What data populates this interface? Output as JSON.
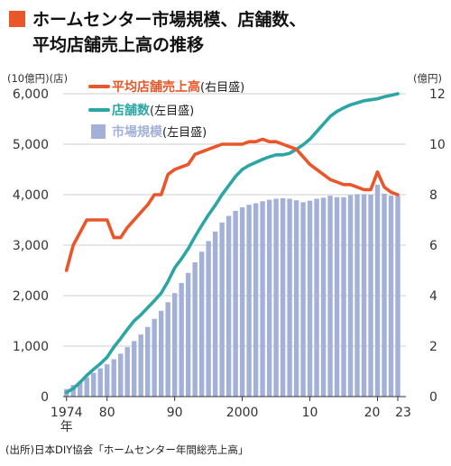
{
  "title": {
    "line1": "ホームセンター市場規模、店舗数、",
    "line2": "平均店舗売上高の推移",
    "accent_color": "#e8562a"
  },
  "source": "(出所)日本DIY協会「ホームセンター年間総売上高」",
  "chart_data": {
    "type": "bar+line",
    "left_axis_labels": [
      "(10億円)",
      "(店)"
    ],
    "right_axis_label": "(億円)",
    "left_ticks": [
      "0",
      "1,000",
      "2,000",
      "3,000",
      "4,000",
      "5,000",
      "6,000"
    ],
    "right_ticks": [
      "0",
      "2",
      "4",
      "6",
      "8",
      "10",
      "12"
    ],
    "ylim_left": [
      0,
      6000
    ],
    "ylim_right": [
      0,
      12
    ],
    "x_ticks": [
      "1974",
      "80",
      "90",
      "2000",
      "10",
      "20",
      "23"
    ],
    "x_tick_years": [
      1974,
      1980,
      1990,
      2000,
      2010,
      2020,
      2023
    ],
    "x_sublabel": "年",
    "legend": [
      {
        "name": "平均店舗売上高",
        "suffix": "(右目盛)",
        "color": "#e8562a",
        "kind": "line"
      },
      {
        "name": "店舗数",
        "suffix": "(左目盛)",
        "color": "#2ba6a4",
        "kind": "line"
      },
      {
        "name": "市場規模",
        "suffix": "(左目盛)",
        "color": "#a3b1d9",
        "kind": "bar"
      }
    ],
    "years": [
      1974,
      1975,
      1976,
      1977,
      1978,
      1979,
      1980,
      1981,
      1982,
      1983,
      1984,
      1985,
      1986,
      1987,
      1988,
      1989,
      1990,
      1991,
      1992,
      1993,
      1994,
      1995,
      1996,
      1997,
      1998,
      1999,
      2000,
      2001,
      2002,
      2003,
      2004,
      2005,
      2006,
      2007,
      2008,
      2009,
      2010,
      2011,
      2012,
      2013,
      2014,
      2015,
      2016,
      2017,
      2018,
      2019,
      2020,
      2021,
      2022,
      2023
    ],
    "market_size": [
      150,
      230,
      300,
      380,
      470,
      560,
      640,
      740,
      850,
      980,
      1100,
      1230,
      1380,
      1540,
      1700,
      1870,
      2050,
      2250,
      2450,
      2660,
      2870,
      3080,
      3270,
      3450,
      3580,
      3680,
      3750,
      3800,
      3830,
      3870,
      3900,
      3920,
      3930,
      3920,
      3890,
      3850,
      3880,
      3920,
      3940,
      3980,
      3950,
      3950,
      3990,
      4010,
      4010,
      4000,
      4200,
      4020,
      3980,
      3980
    ],
    "store_count": [
      80,
      160,
      280,
      420,
      540,
      650,
      780,
      980,
      1150,
      1330,
      1500,
      1620,
      1760,
      1900,
      2050,
      2280,
      2550,
      2730,
      2930,
      3170,
      3390,
      3600,
      3790,
      4000,
      4180,
      4360,
      4500,
      4580,
      4640,
      4700,
      4750,
      4790,
      4790,
      4820,
      4900,
      4990,
      5100,
      5250,
      5400,
      5550,
      5650,
      5720,
      5780,
      5820,
      5860,
      5880,
      5900,
      5940,
      5970,
      6000
    ],
    "avg_store_sales": [
      5.0,
      6.0,
      6.5,
      7.0,
      7.0,
      7.0,
      7.0,
      6.3,
      6.3,
      6.7,
      7.0,
      7.3,
      7.6,
      8.0,
      8.0,
      8.8,
      9.0,
      9.1,
      9.2,
      9.6,
      9.7,
      9.8,
      9.9,
      10.0,
      10.0,
      10.0,
      10.0,
      10.1,
      10.1,
      10.2,
      10.1,
      10.1,
      10.0,
      9.9,
      9.8,
      9.5,
      9.2,
      9.0,
      8.8,
      8.6,
      8.5,
      8.4,
      8.4,
      8.3,
      8.2,
      8.2,
      8.9,
      8.3,
      8.1,
      8.0
    ]
  }
}
